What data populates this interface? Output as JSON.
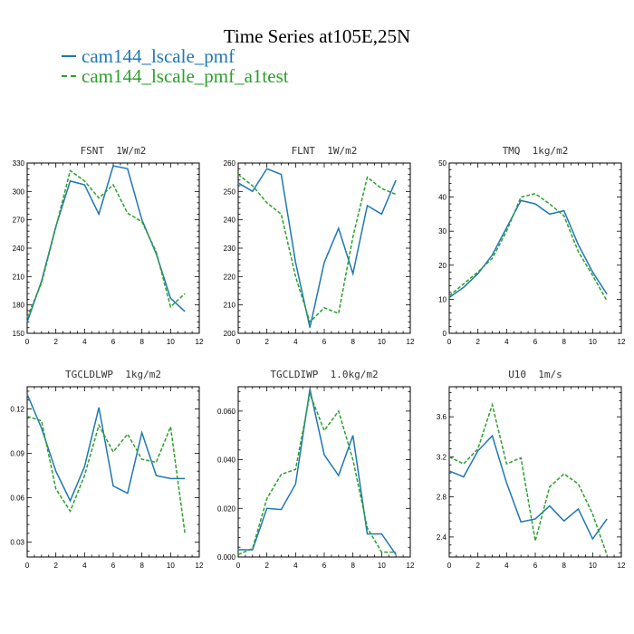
{
  "title": "Time Series at105E,25N",
  "legend": [
    {
      "label": "cam144_lscale_pmf",
      "color": "#1f77b4",
      "style": "solid"
    },
    {
      "label": "cam144_lscale_pmf_a1test",
      "color": "#2ca02c",
      "style": "dashed"
    }
  ],
  "chart_data": [
    {
      "type": "line",
      "title": "FSNT  1W/m2",
      "x": [
        0,
        1,
        2,
        3,
        4,
        5,
        6,
        7,
        8,
        9,
        10,
        11
      ],
      "xlim": [
        0,
        12
      ],
      "xticks": [
        0,
        2,
        4,
        6,
        8,
        10,
        12
      ],
      "xtick_labels": [
        "0",
        "2",
        "4",
        "6",
        "8",
        "10",
        "12"
      ],
      "ylim": [
        150,
        330
      ],
      "yticks": [
        150,
        180,
        210,
        240,
        270,
        300,
        330
      ],
      "ytick_labels": [
        "150",
        "180",
        "210",
        "240",
        "270",
        "300",
        "330"
      ],
      "series": [
        {
          "name": "cam144_lscale_pmf",
          "values": [
            162,
            205,
            263,
            311,
            307,
            276,
            327,
            324,
            270,
            234,
            187,
            173
          ]
        },
        {
          "name": "cam144_lscale_pmf_a1test",
          "values": [
            167,
            203,
            262,
            322,
            311,
            293,
            307,
            277,
            268,
            236,
            178,
            192
          ]
        }
      ]
    },
    {
      "type": "line",
      "title": "FLNT  1W/m2",
      "x": [
        0,
        1,
        2,
        3,
        4,
        5,
        6,
        7,
        8,
        9,
        10,
        11
      ],
      "xlim": [
        0,
        12
      ],
      "xticks": [
        0,
        2,
        4,
        6,
        8,
        10,
        12
      ],
      "xtick_labels": [
        "0",
        "2",
        "4",
        "6",
        "8",
        "10",
        "12"
      ],
      "ylim": [
        200,
        260
      ],
      "yticks": [
        200,
        210,
        220,
        230,
        240,
        250,
        260
      ],
      "ytick_labels": [
        "200",
        "210",
        "220",
        "230",
        "240",
        "250",
        "260"
      ],
      "series": [
        {
          "name": "cam144_lscale_pmf",
          "values": [
            253,
            250,
            258,
            256,
            225,
            202,
            225,
            237,
            221,
            245,
            242,
            254
          ]
        },
        {
          "name": "cam144_lscale_pmf_a1test",
          "values": [
            256,
            252,
            246,
            242,
            220,
            204,
            209,
            207,
            234,
            255,
            251,
            249
          ]
        }
      ]
    },
    {
      "type": "line",
      "title": "TMQ  1kg/m2",
      "x": [
        0,
        1,
        2,
        3,
        4,
        5,
        6,
        7,
        8,
        9,
        10,
        11
      ],
      "xlim": [
        0,
        12
      ],
      "xticks": [
        0,
        2,
        4,
        6,
        8,
        10,
        12
      ],
      "xtick_labels": [
        "0",
        "2",
        "4",
        "6",
        "8",
        "10",
        "12"
      ],
      "ylim": [
        0,
        50
      ],
      "yticks": [
        0,
        10,
        20,
        30,
        40,
        50
      ],
      "ytick_labels": [
        "0",
        "10",
        "20",
        "30",
        "40",
        "50"
      ],
      "series": [
        {
          "name": "cam144_lscale_pmf",
          "values": [
            10.5,
            13.5,
            17.5,
            23,
            31,
            39,
            38,
            35,
            36,
            26,
            18,
            11.5
          ]
        },
        {
          "name": "cam144_lscale_pmf_a1test",
          "values": [
            11,
            14.5,
            18,
            22,
            30,
            40,
            41,
            38,
            34.5,
            24,
            17,
            9.5
          ]
        }
      ]
    },
    {
      "type": "line",
      "title": "TGCLDLWP  1kg/m2",
      "x": [
        0,
        1,
        2,
        3,
        4,
        5,
        6,
        7,
        8,
        9,
        10,
        11
      ],
      "xlim": [
        0,
        12
      ],
      "xticks": [
        0,
        2,
        4,
        6,
        8,
        10,
        12
      ],
      "xtick_labels": [
        "0",
        "2",
        "4",
        "6",
        "8",
        "10",
        "12"
      ],
      "ylim": [
        0.02,
        0.135
      ],
      "yticks": [
        0.03,
        0.06,
        0.09,
        0.12
      ],
      "ytick_labels": [
        "0.03",
        "0.06",
        "0.09",
        "0.12"
      ],
      "series": [
        {
          "name": "cam144_lscale_pmf",
          "values": [
            0.13,
            0.107,
            0.078,
            0.058,
            0.081,
            0.121,
            0.068,
            0.063,
            0.104,
            0.075,
            0.073,
            0.073
          ]
        },
        {
          "name": "cam144_lscale_pmf_a1test",
          "values": [
            0.115,
            0.112,
            0.066,
            0.051,
            0.075,
            0.109,
            0.091,
            0.103,
            0.086,
            0.084,
            0.108,
            0.036
          ]
        }
      ]
    },
    {
      "type": "line",
      "title": "TGCLDIWP  1.0kg/m2",
      "x": [
        0,
        1,
        2,
        3,
        4,
        5,
        6,
        7,
        8,
        9,
        10,
        11
      ],
      "xlim": [
        0,
        12
      ],
      "xticks": [
        0,
        2,
        4,
        6,
        8,
        10,
        12
      ],
      "xtick_labels": [
        "0",
        "2",
        "4",
        "6",
        "8",
        "10",
        "12"
      ],
      "ylim": [
        0,
        0.07
      ],
      "yticks": [
        0.0,
        0.02,
        0.04,
        0.06
      ],
      "ytick_labels": [
        "0.000",
        "0.020",
        "0.040",
        "0.060"
      ],
      "series": [
        {
          "name": "cam144_lscale_pmf",
          "values": [
            0.003,
            0.003,
            0.02,
            0.0195,
            0.03,
            0.069,
            0.042,
            0.0335,
            0.05,
            0.0095,
            0.0095,
            0.001
          ]
        },
        {
          "name": "cam144_lscale_pmf_a1test",
          "values": [
            0.001,
            0.0035,
            0.024,
            0.034,
            0.036,
            0.067,
            0.052,
            0.06,
            0.04,
            0.012,
            0.002,
            0.002
          ]
        }
      ]
    },
    {
      "type": "line",
      "title": "U10  1m/s",
      "x": [
        0,
        1,
        2,
        3,
        4,
        5,
        6,
        7,
        8,
        9,
        10,
        11
      ],
      "xlim": [
        0,
        12
      ],
      "xticks": [
        0,
        2,
        4,
        6,
        8,
        10,
        12
      ],
      "xtick_labels": [
        "0",
        "2",
        "4",
        "6",
        "8",
        "10",
        "12"
      ],
      "ylim": [
        2.2,
        3.9
      ],
      "yticks": [
        2.4,
        2.8,
        3.2,
        3.6
      ],
      "ytick_labels": [
        "2.4",
        "2.8",
        "3.2",
        "3.6"
      ],
      "series": [
        {
          "name": "cam144_lscale_pmf",
          "values": [
            3.06,
            3.0,
            3.26,
            3.41,
            2.94,
            2.55,
            2.58,
            2.71,
            2.56,
            2.68,
            2.38,
            2.58
          ]
        },
        {
          "name": "cam144_lscale_pmf_a1test",
          "values": [
            3.2,
            3.13,
            3.28,
            3.72,
            3.13,
            3.19,
            2.36,
            2.9,
            3.03,
            2.93,
            2.63,
            2.22
          ]
        }
      ]
    }
  ]
}
